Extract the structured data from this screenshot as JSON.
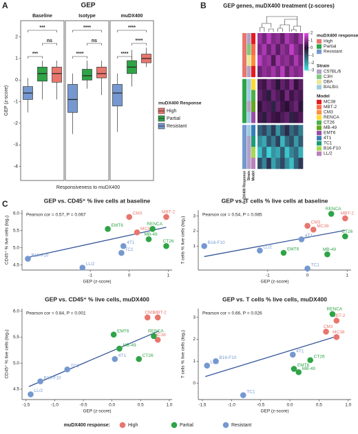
{
  "panel_labels": [
    "A",
    "B",
    "C"
  ],
  "response_legend": {
    "title": "muDX400 response:",
    "items": [
      {
        "name": "High",
        "color": "#e8766d"
      },
      {
        "name": "Partial",
        "color": "#2ea446"
      },
      {
        "name": "Resistant",
        "color": "#7598d0"
      }
    ]
  },
  "chart_data": [
    {
      "type": "box",
      "title": "GEP",
      "y_label": "GEP (z-score)",
      "x_label": "Responsiveness to muDX400",
      "categories": [
        "Baseline",
        "Isotype",
        "muDX400"
      ],
      "ylim": [
        -4.65,
        2.75
      ],
      "yticks": [
        -4,
        -3,
        -2,
        -1,
        0,
        1,
        2
      ],
      "legend_title": "muDX400 Response",
      "series": [
        {
          "name": "Resistant",
          "color": "#7598d0",
          "q1": [
            -0.9,
            -1.5,
            -1.2
          ],
          "median": [
            -0.6,
            -0.9,
            -0.6
          ],
          "q3": [
            -0.3,
            -0.2,
            -0.2
          ],
          "min": [
            -1.5,
            -2.5,
            -2.4
          ],
          "max": [
            0.1,
            0.3,
            0.3
          ]
        },
        {
          "name": "Partial",
          "color": "#2ea446",
          "q1": [
            -0.05,
            0.0,
            0.3
          ],
          "median": [
            0.3,
            0.2,
            0.6
          ],
          "q3": [
            0.6,
            0.5,
            0.9
          ],
          "min": [
            -0.9,
            -0.4,
            -0.3
          ],
          "max": [
            0.9,
            0.9,
            1.4
          ]
        },
        {
          "name": "High",
          "color": "#e8766d",
          "q1": [
            -0.1,
            0.1,
            0.8
          ],
          "median": [
            0.3,
            0.3,
            1.0
          ],
          "q3": [
            0.6,
            0.6,
            1.2
          ],
          "min": [
            -0.9,
            -0.7,
            0.6
          ],
          "max": [
            0.9,
            0.9,
            1.5
          ]
        }
      ],
      "significance": [
        [
          "***",
          "ns",
          "***"
        ],
        [
          "****",
          "ns",
          "****"
        ],
        [
          "****",
          "****",
          "****"
        ]
      ]
    },
    {
      "type": "heatmap",
      "title": "GEP genes, muDX400 treatment (z-scores)",
      "values": [
        [
          1.2,
          0.8,
          1.5,
          0.9,
          1.1,
          0.6,
          1.4,
          1.0,
          0.7,
          1.3
        ],
        [
          0.9,
          1.4,
          0.7,
          1.2,
          0.5,
          1.1,
          0.8,
          1.6,
          1.0,
          0.6
        ],
        [
          1.5,
          1.0,
          1.2,
          0.4,
          1.3,
          0.9,
          1.1,
          0.7,
          1.4,
          0.8
        ],
        [
          0.7,
          1.1,
          0.9,
          1.3,
          0.8,
          1.5,
          0.6,
          1.2,
          0.9,
          1.1
        ],
        [
          0.4,
          0.2,
          0.8,
          0.5,
          -0.1,
          0.6,
          0.3,
          0.9,
          0.1,
          0.5
        ],
        [
          0.6,
          0.3,
          -0.2,
          0.7,
          0.4,
          0.1,
          0.8,
          0.2,
          0.5,
          0.3
        ],
        [
          0.1,
          0.5,
          0.4,
          -0.3,
          0.6,
          0.2,
          0.0,
          0.4,
          0.7,
          -0.1
        ],
        [
          0.3,
          -0.2,
          0.5,
          0.2,
          0.1,
          0.4,
          0.6,
          -0.3,
          0.2,
          0.4
        ],
        [
          -1.2,
          -0.8,
          -1.5,
          -0.6,
          -1.9,
          -1.0,
          -0.4,
          -1.3,
          -0.9,
          -1.6
        ],
        [
          -1.8,
          -2.2,
          -1.0,
          -1.6,
          -0.7,
          -2.4,
          -1.3,
          -0.9,
          -2.0,
          -1.1
        ],
        [
          -2.5,
          -1.4,
          -2.8,
          -1.9,
          -2.2,
          -1.1,
          -2.6,
          -1.7,
          -1.3,
          -2.3
        ],
        [
          -0.9,
          -1.7,
          -0.5,
          -2.1,
          -1.4,
          -0.8,
          -1.8,
          -2.5,
          -1.2,
          -0.6
        ]
      ],
      "row_response": [
        "High",
        "High",
        "High",
        "High",
        "Partial",
        "Partial",
        "Partial",
        "Partial",
        "Resistant",
        "Resistant",
        "Resistant",
        "Resistant"
      ],
      "row_strain": [
        "C57BL/6",
        "C3H",
        "DBA",
        "C57BL/6",
        "BALB/c",
        "BALB/c",
        "C57BL/6",
        "BALB/c",
        "BALB/c",
        "C57BL/6",
        "C57BL/6",
        "C57BL/6"
      ],
      "row_model": [
        "MC38",
        "MBT-2",
        "CM3",
        "MC38",
        "RENCA",
        "CT26",
        "MB-49",
        "EMT6",
        "4T1",
        "TC1",
        "B16-F10",
        "LL/2"
      ],
      "annotation_labels": [
        "muDX400 Response",
        "Strain",
        "Model"
      ],
      "zlim": [
        -3,
        2
      ],
      "zticks": [
        2,
        1,
        0,
        -1,
        -2,
        -3
      ],
      "colors": [
        "#3fe0e0",
        "#2a0f35",
        "#e44be6"
      ],
      "legends": [
        {
          "title": "muDX400 response",
          "items": [
            {
              "name": "High",
              "color": "#e8766d"
            },
            {
              "name": "Partial",
              "color": "#2ea446"
            },
            {
              "name": "Resistant",
              "color": "#7598d0"
            }
          ]
        },
        {
          "title": "Strain",
          "items": [
            {
              "name": "C57BL/6",
              "color": "#b3a2c7"
            },
            {
              "name": "C3H",
              "color": "#7fc97f"
            },
            {
              "name": "DBA",
              "color": "#e8e89a"
            },
            {
              "name": "BALB/c",
              "color": "#9ecae1"
            }
          ]
        },
        {
          "title": "Model",
          "items": [
            {
              "name": "MC38",
              "color": "#e41a1c"
            },
            {
              "name": "MBT-2",
              "color": "#fb6a4a"
            },
            {
              "name": "CM3",
              "color": "#fd8d3c"
            },
            {
              "name": "RENCA",
              "color": "#ffd92f"
            },
            {
              "name": "CT26",
              "color": "#4daf4a"
            },
            {
              "name": "MB-49",
              "color": "#66a61e"
            },
            {
              "name": "EMT6",
              "color": "#984ea3"
            },
            {
              "name": "4T1",
              "color": "#377eb8"
            },
            {
              "name": "TC1",
              "color": "#1b9e77"
            },
            {
              "name": "B16-F10",
              "color": "#a6d854"
            },
            {
              "name": "LL/2",
              "color": "#bc80bd"
            }
          ]
        }
      ]
    },
    {
      "type": "scatter",
      "title": "GEP vs. CD45⁺ % live cells at baseline",
      "annotation": "Pearson cor = 0.57, P = 0.067",
      "x_label": "GEP (z-score)",
      "y_label": "CD45⁺ % live cells (log₂)",
      "xlim": [
        -2.75,
        1.1
      ],
      "xticks": [
        -1,
        0,
        1
      ],
      "ylim": [
        4.35,
        6.1
      ],
      "yticks": [
        4.5,
        {
          "value": 5,
          "label": "5.0"
        },
        5.5,
        {
          "value": 6,
          "label": "6.0"
        }
      ],
      "labels": [
        "MBT-2",
        "CM3",
        "MC38",
        "RENCA",
        "MB-49",
        "CT26",
        "EMT6",
        "4T1",
        "TC1",
        "B16-F10",
        "LL/2"
      ],
      "x": [
        0.95,
        0.0,
        0.2,
        0.6,
        0.5,
        0.95,
        -0.55,
        -0.15,
        -0.2,
        -2.6,
        -1.2
      ],
      "values": [
        5.9,
        5.9,
        5.45,
        5.55,
        5.25,
        5.05,
        5.55,
        5.05,
        4.85,
        4.68,
        4.42
      ],
      "colors": [
        "#e8766d",
        "#e8766d",
        "#e8766d",
        "#2ea446",
        "#2ea446",
        "#2ea446",
        "#2ea446",
        "#7598d0",
        "#7598d0",
        "#7598d0",
        "#7598d0"
      ],
      "fit": {
        "x": [
          -2.6,
          0.95
        ],
        "y": [
          4.72,
          5.6
        ]
      },
      "fit_color": "#35569a"
    },
    {
      "type": "scatter",
      "title": "GEP vs. T cells % live cells at baseline",
      "annotation": "Pearson cor = 0.54, P = 0.085",
      "x_label": "GEP (z-score)",
      "y_label": "T cells % live cells (log₂)",
      "xlim": [
        -2.75,
        1.1
      ],
      "xticks": [
        -1,
        0,
        1
      ],
      "ylim": [
        -0.6,
        3.4
      ],
      "yticks": [
        1,
        2,
        3
      ],
      "labels": [
        "MBT-2",
        "CM3",
        "MC38",
        "RENCA",
        "MB-49",
        "CT26",
        "EMT6",
        "4T1",
        "TC1",
        "B16-F10",
        "LL/2"
      ],
      "x": [
        0.95,
        0.0,
        0.15,
        0.6,
        0.5,
        0.95,
        -0.6,
        -0.15,
        0.0,
        -2.6,
        -1.2
      ],
      "values": [
        2.85,
        2.35,
        2.1,
        3.15,
        0.45,
        1.65,
        0.55,
        1.45,
        -0.5,
        1.0,
        0.7
      ],
      "colors": [
        "#e8766d",
        "#e8766d",
        "#e8766d",
        "#2ea446",
        "#2ea446",
        "#2ea446",
        "#2ea446",
        "#7598d0",
        "#7598d0",
        "#7598d0",
        "#7598d0"
      ],
      "fit": {
        "x": [
          -2.6,
          0.95
        ],
        "y": [
          0.3,
          2.05
        ]
      },
      "fit_color": "#35569a"
    },
    {
      "type": "scatter",
      "title": "GEP vs. CD45⁺ % live cells, muDX400",
      "annotation": "Pearson cor = 0.84, P = 0.001",
      "x_label": "GEP (z-score)",
      "y_label": "CD45⁺ % live cells (log₂)",
      "xlim": [
        -1.57,
        1.05
      ],
      "xticks": [
        -1.5,
        {
          "value": -1,
          "label": "-1.0"
        },
        -0.5,
        {
          "value": 0,
          "label": "0.0"
        },
        0.5,
        {
          "value": 1,
          "label": "1.0"
        }
      ],
      "ylim": [
        4.3,
        6.05
      ],
      "yticks": [
        4.5,
        {
          "value": 5,
          "label": "5.0"
        },
        5.5,
        {
          "value": 6,
          "label": "6.0"
        }
      ],
      "labels": [
        "MBT-2",
        "CM3",
        "MC38",
        "RENCA",
        "MB-49",
        "CT26",
        "EMT6",
        "4T1",
        "TC1",
        "B16-F10",
        "LL/2"
      ],
      "x": [
        0.8,
        0.62,
        0.8,
        0.73,
        0.13,
        0.47,
        0.03,
        0.05,
        -0.78,
        -1.25,
        -1.42
      ],
      "values": [
        5.88,
        5.88,
        5.45,
        5.52,
        5.28,
        5.08,
        5.55,
        5.08,
        4.88,
        4.65,
        4.4
      ],
      "colors": [
        "#e8766d",
        "#e8766d",
        "#e8766d",
        "#2ea446",
        "#2ea446",
        "#2ea446",
        "#2ea446",
        "#7598d0",
        "#7598d0",
        "#7598d0",
        "#7598d0"
      ],
      "fit": {
        "x": [
          -1.45,
          0.82
        ],
        "y": [
          4.55,
          5.62
        ]
      },
      "fit_color": "#35569a"
    },
    {
      "type": "scatter",
      "title": "GEP vs. T cells % live cells, muDX400",
      "annotation": "Pearson cor = 0.66, P = 0.026",
      "x_label": "GEP (z-score)",
      "y_label": "T cells % live cells (log₂)",
      "xlim": [
        -1.57,
        1.05
      ],
      "xticks": [
        -1.5,
        {
          "value": -1,
          "label": "-1.0"
        },
        -0.5,
        {
          "value": 0,
          "label": "0.0"
        },
        0.5,
        {
          "value": 1,
          "label": "1.0"
        }
      ],
      "ylim": [
        -0.75,
        3.4
      ],
      "yticks": [
        0,
        1,
        2,
        3
      ],
      "labels": [
        "MBT-2",
        "CM3",
        "MC38",
        "RENCA",
        "MB-49",
        "CT26",
        "EMT6",
        "4T1",
        "TC1",
        "B16-F10",
        "LL/2"
      ],
      "x": [
        0.8,
        0.62,
        0.8,
        0.73,
        0.15,
        0.35,
        0.07,
        0.05,
        -0.8,
        -1.27,
        -1.42
      ],
      "values": [
        2.85,
        2.35,
        2.1,
        3.15,
        0.5,
        1.05,
        0.65,
        1.3,
        -0.55,
        1.0,
        0.8
      ],
      "colors": [
        "#e8766d",
        "#e8766d",
        "#e8766d",
        "#2ea446",
        "#2ea446",
        "#2ea446",
        "#2ea446",
        "#7598d0",
        "#7598d0",
        "#7598d0",
        "#7598d0"
      ],
      "fit": {
        "x": [
          -1.45,
          0.82
        ],
        "y": [
          0.3,
          2.15
        ]
      },
      "fit_color": "#35569a"
    }
  ]
}
